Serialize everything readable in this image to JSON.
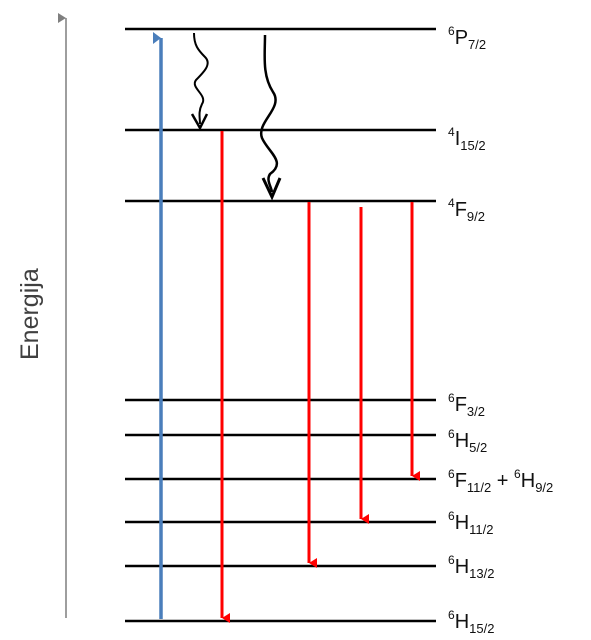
{
  "axis": {
    "label": "Energija"
  },
  "levels": [
    {
      "id": "6P7/2",
      "mult": "6",
      "term": "P",
      "j": "7/2"
    },
    {
      "id": "4I15/2",
      "mult": "4",
      "term": "I",
      "j": "15/2"
    },
    {
      "id": "4F9/2",
      "mult": "4",
      "term": "F",
      "j": "9/2"
    },
    {
      "id": "6F3/2",
      "mult": "6",
      "term": "F",
      "j": "3/2"
    },
    {
      "id": "6H5/2",
      "mult": "6",
      "term": "H",
      "j": "5/2"
    },
    {
      "id": "6F11/2+6H9/2",
      "mult": "6",
      "term": "F",
      "j": "11/2",
      "joiner": " + ",
      "mult2": "6",
      "term2": "H",
      "j2": "9/2"
    },
    {
      "id": "6H11/2",
      "mult": "6",
      "term": "H",
      "j": "11/2"
    },
    {
      "id": "6H13/2",
      "mult": "6",
      "term": "H",
      "j": "13/2"
    },
    {
      "id": "6H15/2",
      "mult": "6",
      "term": "H",
      "j": "15/2"
    }
  ],
  "transitions": [
    {
      "type": "excitation",
      "from": "6H15/2",
      "to": "6P7/2",
      "color": "#4a7ebb"
    },
    {
      "type": "nonradiative",
      "from": "6P7/2",
      "to": "4I15/2",
      "color": "#000000"
    },
    {
      "type": "nonradiative",
      "from": "6P7/2",
      "to": "4F9/2",
      "color": "#000000"
    },
    {
      "type": "emission",
      "from": "4I15/2",
      "to": "6H15/2",
      "color": "#ff0000"
    },
    {
      "type": "emission",
      "from": "4F9/2",
      "to": "6H13/2",
      "color": "#ff0000"
    },
    {
      "type": "emission",
      "from": "4F9/2",
      "to": "6H11/2",
      "color": "#ff0000"
    },
    {
      "type": "emission",
      "from": "4F9/2",
      "to": "6F11/2+6H9/2",
      "color": "#ff0000"
    }
  ],
  "colors": {
    "level": "#000000",
    "axis": "#7f7f7f",
    "emission": "#ff0000",
    "excitation": "#4a7ebb"
  }
}
